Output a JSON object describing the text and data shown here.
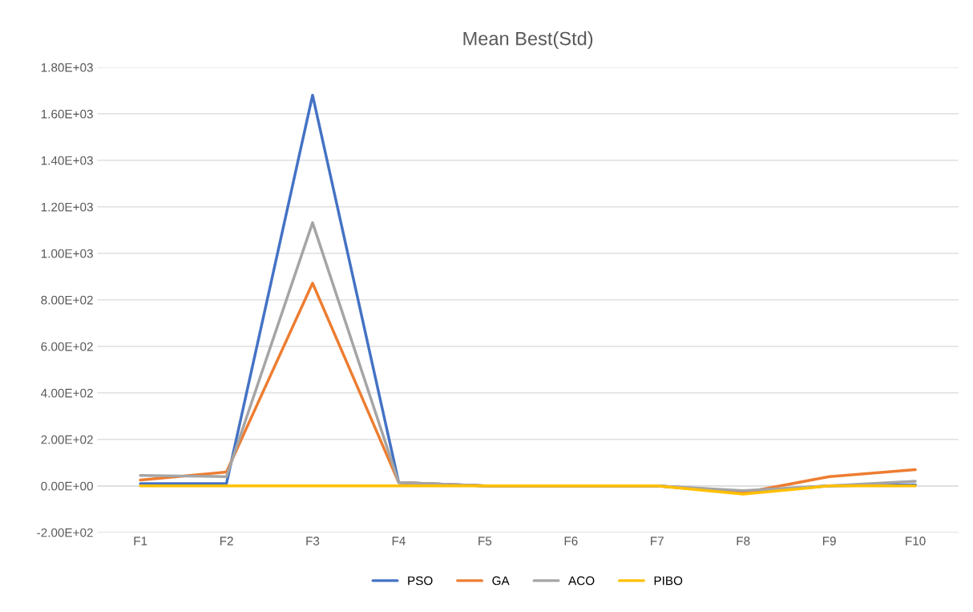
{
  "chart_data": {
    "type": "line",
    "title": "Mean Best(Std)",
    "categories": [
      "F1",
      "F2",
      "F3",
      "F4",
      "F5",
      "F6",
      "F7",
      "F8",
      "F9",
      "F10"
    ],
    "series": [
      {
        "name": "PSO",
        "color": "#4472c4",
        "values": [
          10,
          10,
          1680,
          15,
          0,
          0,
          0,
          -25,
          0,
          5
        ]
      },
      {
        "name": "GA",
        "color": "#ed7d31",
        "values": [
          25,
          60,
          872,
          15,
          0,
          0,
          0,
          -30,
          40,
          70
        ]
      },
      {
        "name": "ACO",
        "color": "#a5a5a5",
        "values": [
          45,
          40,
          1132,
          15,
          0,
          0,
          0,
          -20,
          0,
          20
        ]
      },
      {
        "name": "PIBO",
        "color": "#ffc000",
        "values": [
          0,
          0,
          0,
          0,
          0,
          0,
          0,
          -35,
          0,
          0
        ]
      }
    ],
    "ylim": [
      -200,
      1800
    ],
    "yticks": [
      {
        "value": -200,
        "label": "-2.00E+02"
      },
      {
        "value": 0,
        "label": "0.00E+00"
      },
      {
        "value": 200,
        "label": "2.00E+02"
      },
      {
        "value": 400,
        "label": "4.00E+02"
      },
      {
        "value": 600,
        "label": "6.00E+02"
      },
      {
        "value": 800,
        "label": "8.00E+02"
      },
      {
        "value": 1000,
        "label": "1.00E+03"
      },
      {
        "value": 1200,
        "label": "1.20E+03"
      },
      {
        "value": 1400,
        "label": "1.40E+03"
      },
      {
        "value": 1600,
        "label": "1.60E+03"
      },
      {
        "value": 1800,
        "label": "1.80E+03"
      }
    ],
    "grid": "y",
    "legend": "bottom"
  }
}
